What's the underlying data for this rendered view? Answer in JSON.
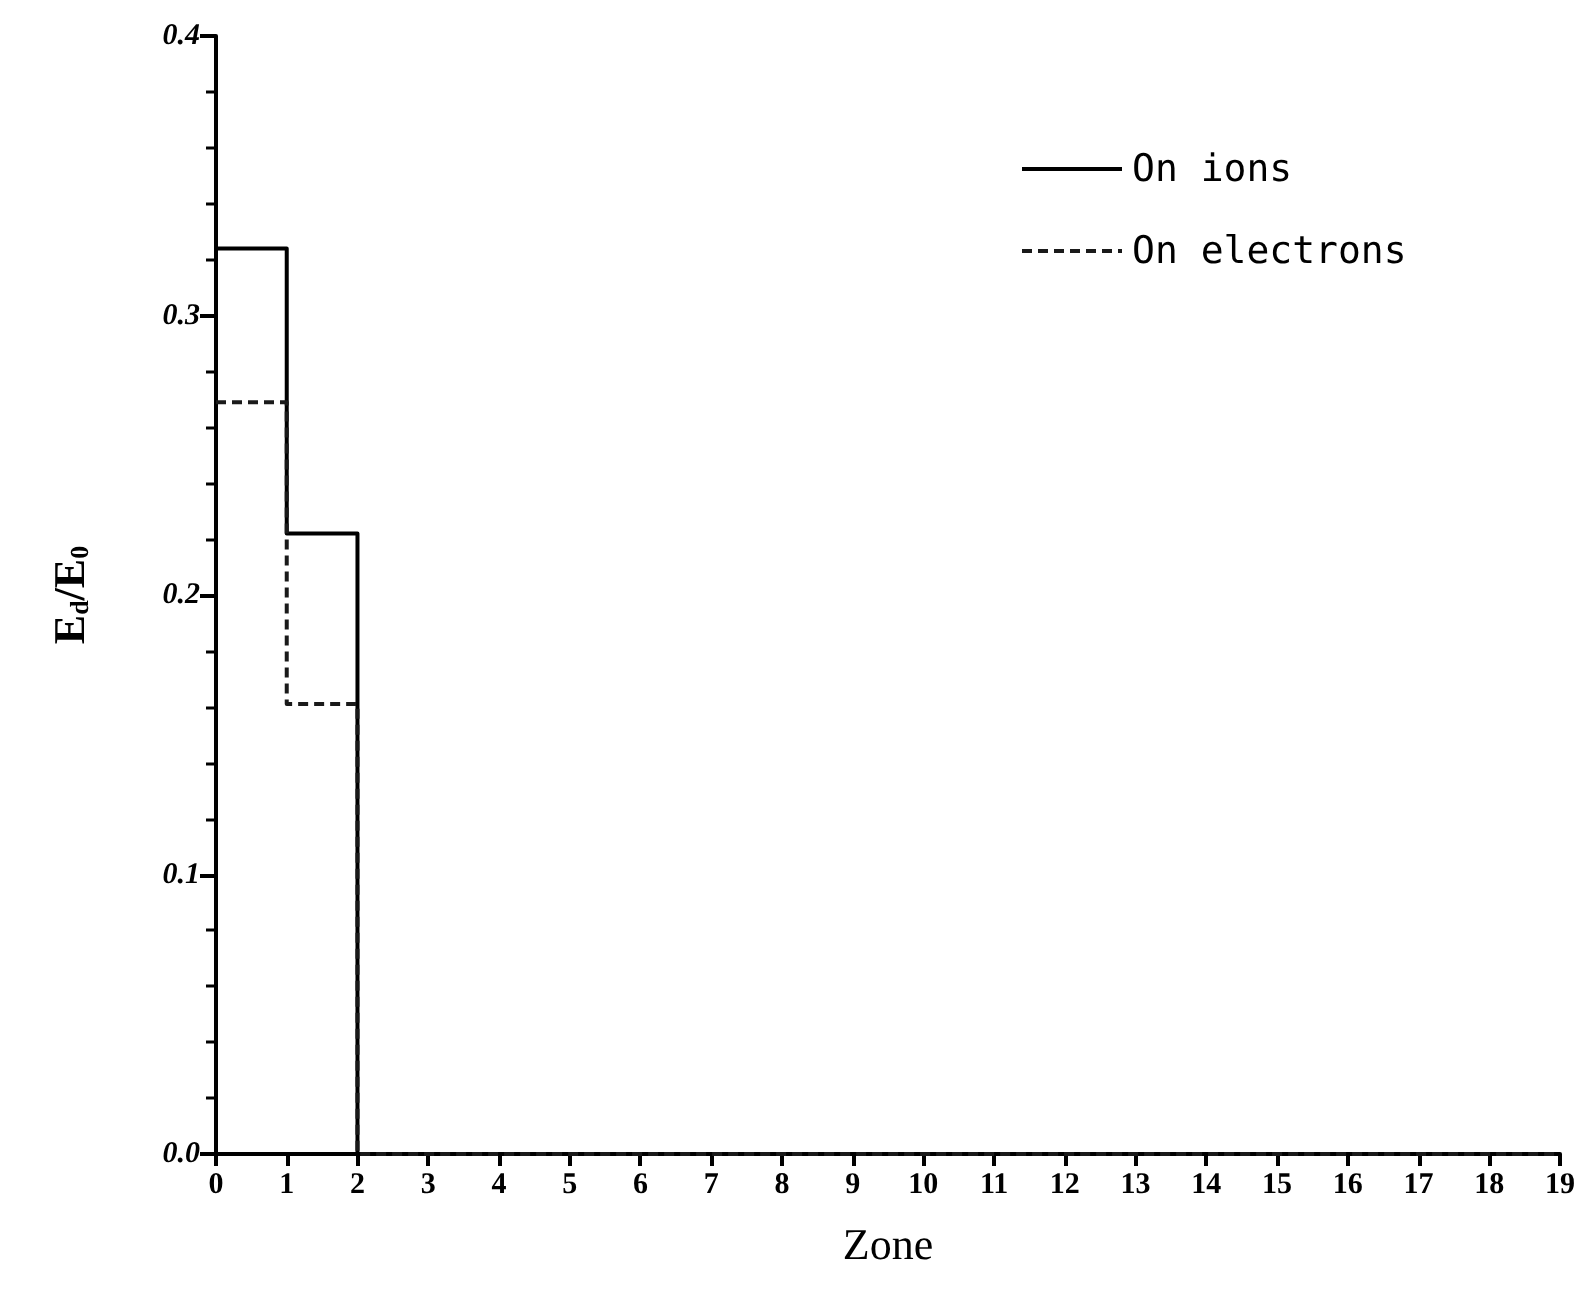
{
  "chart_data": {
    "type": "histogram",
    "xlabel": "Zone",
    "ylabel": "E$_{d}$/E$_{0}$",
    "bins": [
      0,
      1,
      2,
      3,
      4,
      5,
      6,
      7,
      8,
      9,
      10,
      11,
      12,
      13,
      14,
      15,
      16,
      17,
      18,
      19
    ],
    "series": [
      {
        "name": "On ions",
        "color": "#000000",
        "line_style": "solid",
        "values": [
          0.324,
          0.222,
          0,
          0,
          0,
          0,
          0,
          0,
          0,
          0,
          0,
          0,
          0,
          0,
          0,
          0,
          0,
          0,
          0
        ]
      },
      {
        "name": "On electrons",
        "color": "#1a1a1a",
        "line_style": "dashed",
        "values": [
          0.269,
          0.161,
          0,
          0,
          0,
          0,
          0,
          0,
          0,
          0,
          0,
          0,
          0,
          0,
          0,
          0,
          0,
          0,
          0
        ]
      }
    ],
    "xlim": [
      0,
      19
    ],
    "xticks": [
      0,
      1,
      2,
      3,
      4,
      5,
      6,
      7,
      8,
      9,
      10,
      11,
      12,
      13,
      14,
      15,
      16,
      17,
      18,
      19
    ],
    "ylim": [
      0,
      0.4
    ],
    "yticks": [
      {
        "value": 0,
        "label": "0.0"
      },
      0.1,
      0.2,
      0.3,
      0.4
    ],
    "grid": false,
    "legend": "top right"
  }
}
